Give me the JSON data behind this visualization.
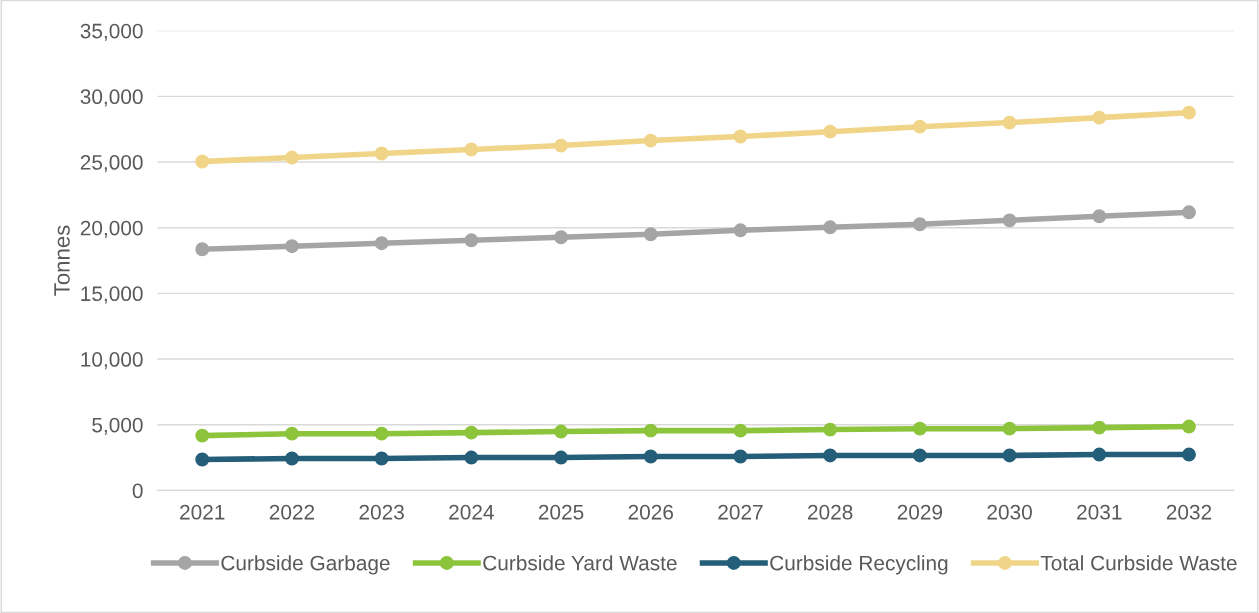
{
  "chart_data": {
    "type": "line",
    "ylabel": "Tonnes",
    "categories": [
      "2021",
      "2022",
      "2023",
      "2024",
      "2025",
      "2026",
      "2027",
      "2028",
      "2029",
      "2030",
      "2031",
      "2032"
    ],
    "series": [
      {
        "name": "Curbside Garbage",
        "color": "#a5a5a5",
        "values": [
          18360,
          18590,
          18820,
          19040,
          19270,
          19500,
          19800,
          20030,
          20260,
          20560,
          20870,
          21170
        ]
      },
      {
        "name": "Curbside Yard Waste",
        "color": "#8cc43c",
        "values": [
          4170,
          4320,
          4320,
          4400,
          4480,
          4550,
          4550,
          4630,
          4700,
          4700,
          4780,
          4860
        ]
      },
      {
        "name": "Curbside Recycling",
        "color": "#255e79",
        "values": [
          2350,
          2430,
          2430,
          2500,
          2500,
          2580,
          2580,
          2660,
          2660,
          2660,
          2730,
          2730
        ]
      },
      {
        "name": "Total Curbside Waste",
        "color": "#f0d488",
        "values": [
          25040,
          25340,
          25650,
          25950,
          26250,
          26630,
          26940,
          27310,
          27690,
          28000,
          28380,
          28760
        ]
      }
    ],
    "ylim": [
      0,
      35000
    ],
    "yticks": [
      {
        "value": 0,
        "label": "0"
      },
      {
        "value": 5000,
        "label": "5,000"
      },
      {
        "value": 10000,
        "label": "10,000"
      },
      {
        "value": 15000,
        "label": "15,000"
      },
      {
        "value": 20000,
        "label": "20,000"
      },
      {
        "value": 25000,
        "label": "25,000"
      },
      {
        "value": 30000,
        "label": "30,000"
      },
      {
        "value": 35000,
        "label": "35,000"
      }
    ],
    "grid": "y",
    "legend": "bottom",
    "marker": "circle",
    "line_style": "solid"
  }
}
